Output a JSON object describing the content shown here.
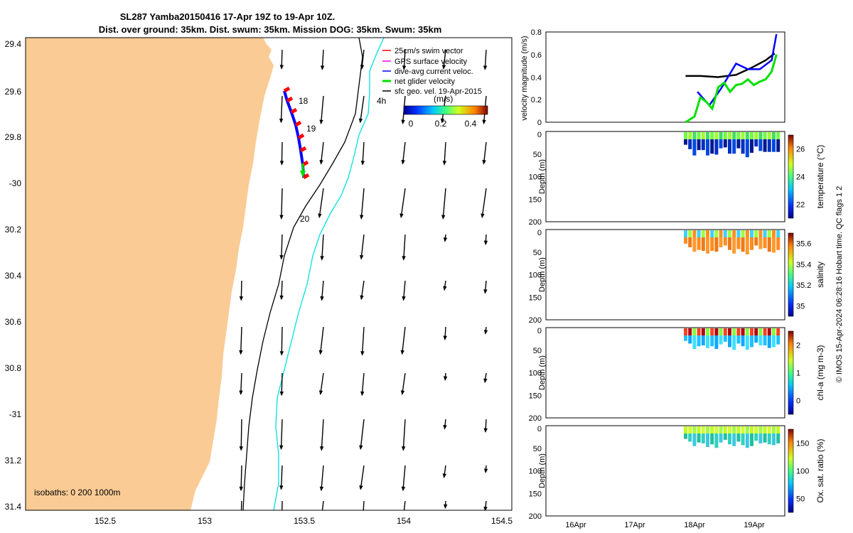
{
  "title": {
    "line1": "SL287 Yamba20150416 17-Apr 19Z to 19-Apr 10Z.",
    "line2": "Dist. over ground: 35km. Dist. swum: 35km. Mission DOG: 35km. Swum: 35km"
  },
  "map": {
    "lon_ticks": [
      "152.5",
      "153",
      "153.5",
      "154",
      "154.5"
    ],
    "lat_ticks": [
      "29.4",
      "29.6",
      "29.8",
      "-30",
      "30.2",
      "30.4",
      "30.6",
      "30.8",
      "-31",
      "31.2",
      "31.4"
    ],
    "isobath_label": "isobaths: 0   200  1000m",
    "track_labels": [
      "18",
      "19",
      "20"
    ],
    "time_label": "4h",
    "legend": [
      {
        "label": "25cm/s swim vector",
        "color": "#ff0000"
      },
      {
        "label": "GPS surface velocity",
        "color": "#ff00ff"
      },
      {
        "label": "dive-avg current veloc.",
        "color": "#0000ff"
      },
      {
        "label": "net glider velocity",
        "color": "#00e000"
      },
      {
        "label": "sfc geo. vel. 19-Apr-2015",
        "color": "#000000"
      }
    ],
    "colorbar": {
      "label": "(m/s)",
      "ticks": [
        "0",
        "0.2",
        "0.4"
      ]
    }
  },
  "chart_data": [
    {
      "type": "line",
      "title": "",
      "ylabel": "velocity magnitude (m/s)",
      "ylim": [
        0,
        0.8
      ],
      "yticks": [
        "0",
        "0.2",
        "0.4",
        "0.6",
        "0.8"
      ],
      "series": [
        {
          "name": "sfc geo. vel.",
          "color": "#000000",
          "x": [
            17.85,
            18.1,
            18.4,
            18.7,
            18.95,
            19.2,
            19.35
          ],
          "values": [
            0.41,
            0.41,
            0.4,
            0.42,
            0.48,
            0.55,
            0.61
          ]
        },
        {
          "name": "dive-avg current veloc.",
          "color": "#0000ff",
          "x": [
            18.05,
            18.25,
            18.45,
            18.7,
            18.9,
            19.1,
            19.3,
            19.38
          ],
          "values": [
            0.27,
            0.15,
            0.3,
            0.52,
            0.47,
            0.47,
            0.55,
            0.78
          ]
        },
        {
          "name": "net glider velocity",
          "color": "#00e000",
          "x": [
            17.85,
            18.0,
            18.1,
            18.2,
            18.3,
            18.4,
            18.5,
            18.6,
            18.7,
            18.8,
            18.9,
            19.0,
            19.1,
            19.2,
            19.3,
            19.38
          ],
          "values": [
            0.0,
            0.05,
            0.22,
            0.18,
            0.12,
            0.31,
            0.35,
            0.27,
            0.33,
            0.34,
            0.38,
            0.33,
            0.36,
            0.38,
            0.45,
            0.6
          ]
        }
      ]
    },
    {
      "type": "heatmap",
      "ylabel": "Depth (m)",
      "yticks": [
        "0",
        "50",
        "100",
        "150",
        "200"
      ],
      "clabel": "temperature (°C)",
      "cticks": [
        "22",
        "24",
        "26"
      ]
    },
    {
      "type": "heatmap",
      "ylabel": "Depth (m)",
      "yticks": [
        "0",
        "50",
        "100",
        "150",
        "200"
      ],
      "clabel": "salinity",
      "cticks": [
        "35",
        "35.2",
        "35.4",
        "35.6"
      ]
    },
    {
      "type": "heatmap",
      "ylabel": "Depth (m)",
      "yticks": [
        "0",
        "50",
        "100",
        "150",
        "200"
      ],
      "clabel": "chl-a (mg m-3)",
      "cticks": [
        "0",
        "1",
        "2"
      ]
    },
    {
      "type": "heatmap",
      "ylabel": "Depth (m)",
      "yticks": [
        "0",
        "50",
        "100",
        "150",
        "200"
      ],
      "clabel": "Ox. sat. ratio (%)",
      "cticks": [
        "50",
        "100",
        "150"
      ],
      "xticks": [
        "16Apr",
        "17Apr",
        "18Apr",
        "19Apr"
      ]
    }
  ],
  "footer": "© IMOS 15-Apr-2024 06:28:16 Hobart time. QC flags 1  2"
}
